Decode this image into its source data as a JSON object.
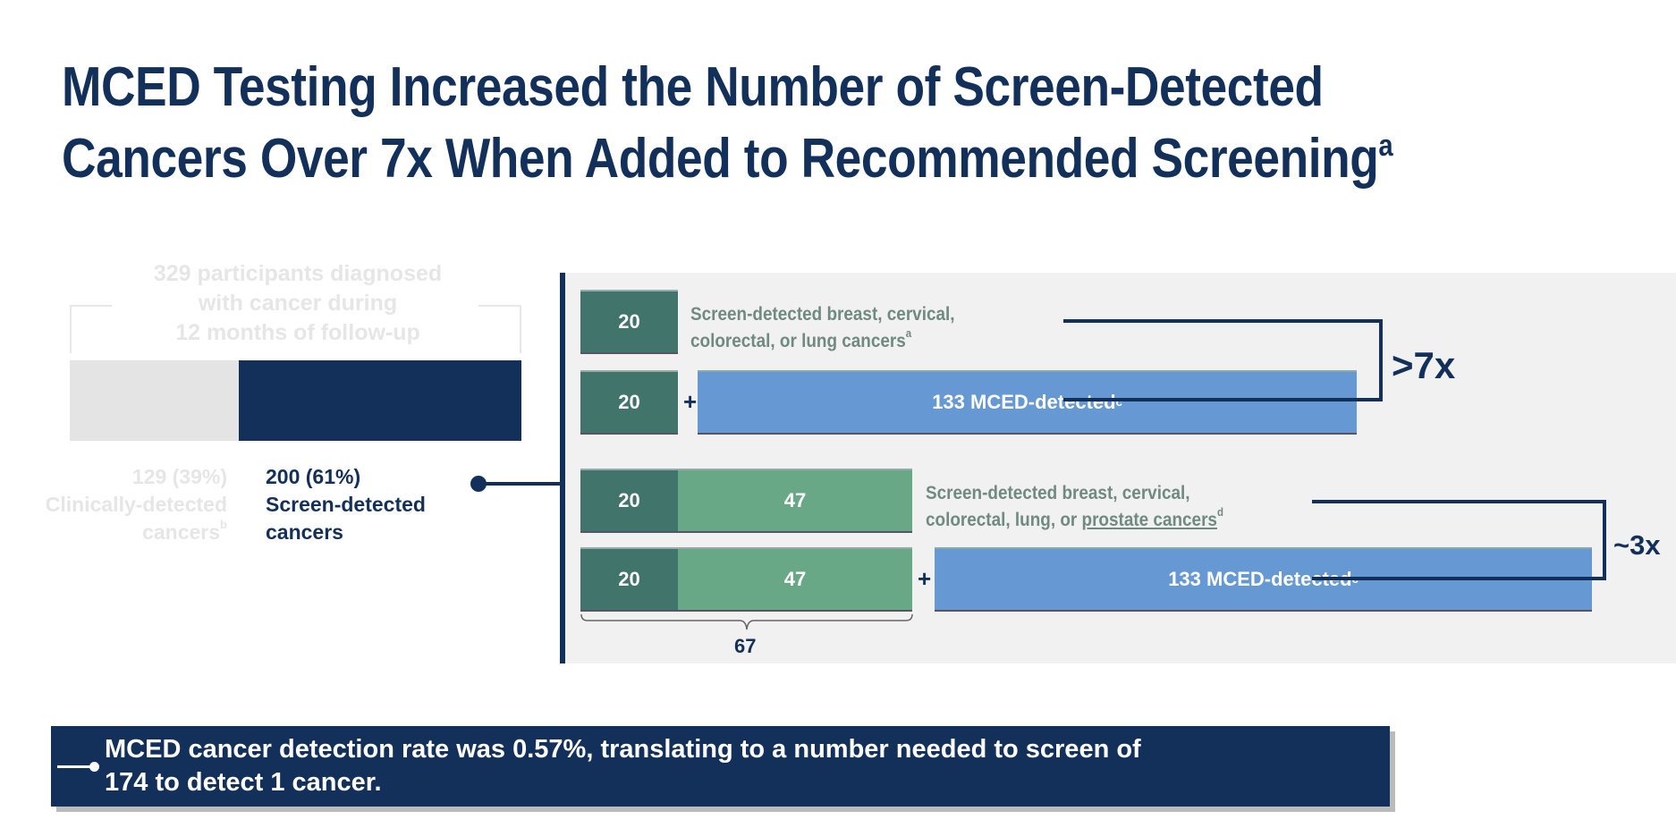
{
  "title": {
    "line1": "MCED Testing Increased the Number of Screen-Detected",
    "line2": "Cancers Over 7x When Added to Recommended Screening",
    "line2_sup": "a"
  },
  "chart_data": {
    "type": "bar",
    "summary_bar": {
      "header": [
        "329 participants diagnosed",
        "with cancer during",
        "12 months of follow-up"
      ],
      "total": 329,
      "segments": [
        {
          "name": "Clinically-detected cancers",
          "value": 129,
          "percent": 39,
          "label": "129 (39%)",
          "desc": "Clinically-detected",
          "desc2": "cancers",
          "sup": "b",
          "color": "#e4e4e4"
        },
        {
          "name": "Screen-detected cancers",
          "value": 200,
          "percent": 61,
          "label": "200 (61%)",
          "desc": "Screen-detected",
          "desc2": "cancers",
          "color": "#13305a"
        }
      ]
    },
    "rows": [
      {
        "segments": [
          {
            "value": 20,
            "label": "20",
            "color": "#41746a"
          }
        ],
        "text": [
          "Screen-detected breast, cervical,",
          "colorectal, or lung cancers"
        ],
        "sup": "a"
      },
      {
        "segments": [
          {
            "value": 20,
            "label": "20",
            "color": "#41746a"
          },
          {
            "value": 133,
            "label": "133 MCED-detected",
            "sup": "c",
            "color": "#6699d4"
          }
        ],
        "plus": "+"
      },
      {
        "segments": [
          {
            "value": 20,
            "label": "20",
            "color": "#41746a"
          },
          {
            "value": 47,
            "label": "47",
            "color": "#68a887"
          }
        ],
        "text": [
          "Screen-detected breast, cervical,",
          "colorectal, lung, or "
        ],
        "text_underlined": "prostate cancers",
        "sup": "d"
      },
      {
        "segments": [
          {
            "value": 20,
            "label": "20",
            "color": "#41746a"
          },
          {
            "value": 47,
            "label": "47",
            "color": "#68a887"
          },
          {
            "value": 133,
            "label": "133 MCED-detected",
            "sup": "c",
            "color": "#6699d4"
          }
        ],
        "plus": "+"
      }
    ],
    "brace_total": "67",
    "comparisons": [
      {
        "label": ">7x"
      },
      {
        "label": "~3x"
      }
    ]
  },
  "note": {
    "line1": "MCED cancer detection rate was 0.57%, translating to a number needed to screen of",
    "line2": "174 to detect 1 cancer."
  }
}
